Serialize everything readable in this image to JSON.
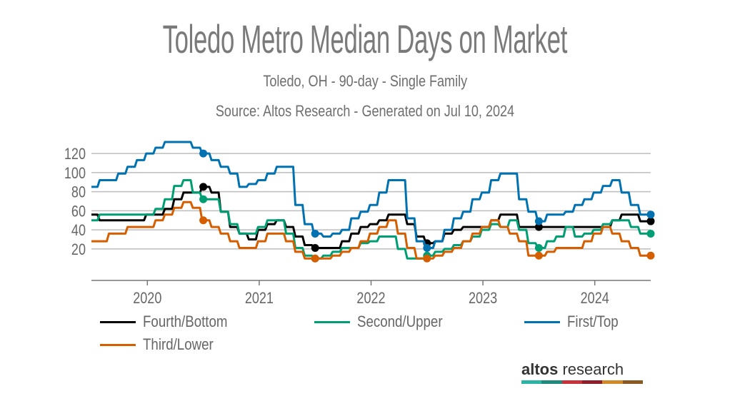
{
  "header": {
    "title": "Toledo Metro Median Days on Market",
    "subtitle": "Toledo, OH - 90-day - Single Family",
    "source": "Source: Altos Research - Generated on Jul 10, 2024"
  },
  "logo": {
    "brand_bold": "altos",
    "brand_light": "research",
    "bar_colors": [
      "#2bb3a3",
      "#1f8a7a",
      "#c8323a",
      "#8e1f2a",
      "#d08a2a",
      "#8a5a22"
    ]
  },
  "chart_data": {
    "type": "line",
    "title": "Toledo Metro Median Days on Market",
    "subtitle": "Toledo, OH - 90-day - Single Family",
    "xlabel": "",
    "ylabel": "",
    "x_start": 2019.5,
    "x_step_months": 1,
    "xlim": [
      2019.5,
      2024.5
    ],
    "ylim": [
      -13,
      135
    ],
    "x_ticks": [
      "2020",
      "2021",
      "2022",
      "2023",
      "2024"
    ],
    "x_tick_values": [
      2020,
      2021,
      2022,
      2023,
      2024
    ],
    "y_ticks": [
      "20",
      "40",
      "60",
      "80",
      "100",
      "120"
    ],
    "y_tick_values": [
      20,
      40,
      60,
      80,
      100,
      120
    ],
    "grid": true,
    "legend_position": "bottom",
    "marker_every_months": 12,
    "series": [
      {
        "name": "Fourth/Bottom",
        "color": "#000000",
        "values": [
          56,
          50,
          50,
          50,
          50,
          50,
          56,
          56,
          62,
          72,
          79,
          79,
          85,
          79,
          59,
          43,
          36,
          30,
          40,
          46,
          50,
          43,
          33,
          24,
          21,
          21,
          21,
          28,
          36,
          43,
          46,
          50,
          56,
          56,
          46,
          33,
          26,
          28,
          36,
          40,
          43,
          43,
          43,
          50,
          56,
          56,
          43,
          43,
          43,
          43,
          43,
          43,
          43,
          43,
          43,
          43,
          50,
          56,
          56,
          49,
          49
        ]
      },
      {
        "name": "Second/Upper",
        "color": "#009e73",
        "values": [
          50,
          56,
          56,
          56,
          56,
          56,
          56,
          62,
          72,
          86,
          92,
          79,
          72,
          72,
          59,
          46,
          36,
          36,
          43,
          50,
          50,
          36,
          21,
          13,
          10,
          13,
          17,
          21,
          21,
          26,
          28,
          33,
          33,
          20,
          10,
          10,
          13,
          17,
          20,
          24,
          28,
          33,
          40,
          46,
          43,
          50,
          40,
          26,
          21,
          28,
          33,
          43,
          33,
          36,
          40,
          46,
          50,
          50,
          43,
          36,
          36
        ]
      },
      {
        "name": "First/Top",
        "color": "#0072b2",
        "values": [
          85,
          92,
          92,
          99,
          106,
          113,
          120,
          126,
          132,
          132,
          132,
          126,
          120,
          113,
          106,
          99,
          85,
          88,
          92,
          99,
          106,
          106,
          66,
          46,
          36,
          33,
          36,
          40,
          52,
          59,
          66,
          79,
          92,
          92,
          52,
          28,
          21,
          28,
          40,
          52,
          59,
          72,
          79,
          92,
          99,
          99,
          72,
          59,
          49,
          56,
          56,
          59,
          66,
          72,
          79,
          86,
          92,
          79,
          66,
          56,
          56
        ]
      },
      {
        "name": "Third/Lower",
        "color": "#d55e00",
        "values": [
          28,
          28,
          36,
          36,
          43,
          43,
          43,
          50,
          56,
          63,
          69,
          63,
          50,
          43,
          36,
          28,
          21,
          21,
          28,
          36,
          36,
          28,
          17,
          10,
          10,
          10,
          13,
          17,
          21,
          28,
          36,
          43,
          50,
          36,
          21,
          10,
          10,
          13,
          17,
          21,
          28,
          36,
          43,
          50,
          43,
          36,
          28,
          13,
          13,
          17,
          21,
          21,
          21,
          28,
          36,
          43,
          36,
          28,
          21,
          13,
          13
        ]
      }
    ]
  }
}
